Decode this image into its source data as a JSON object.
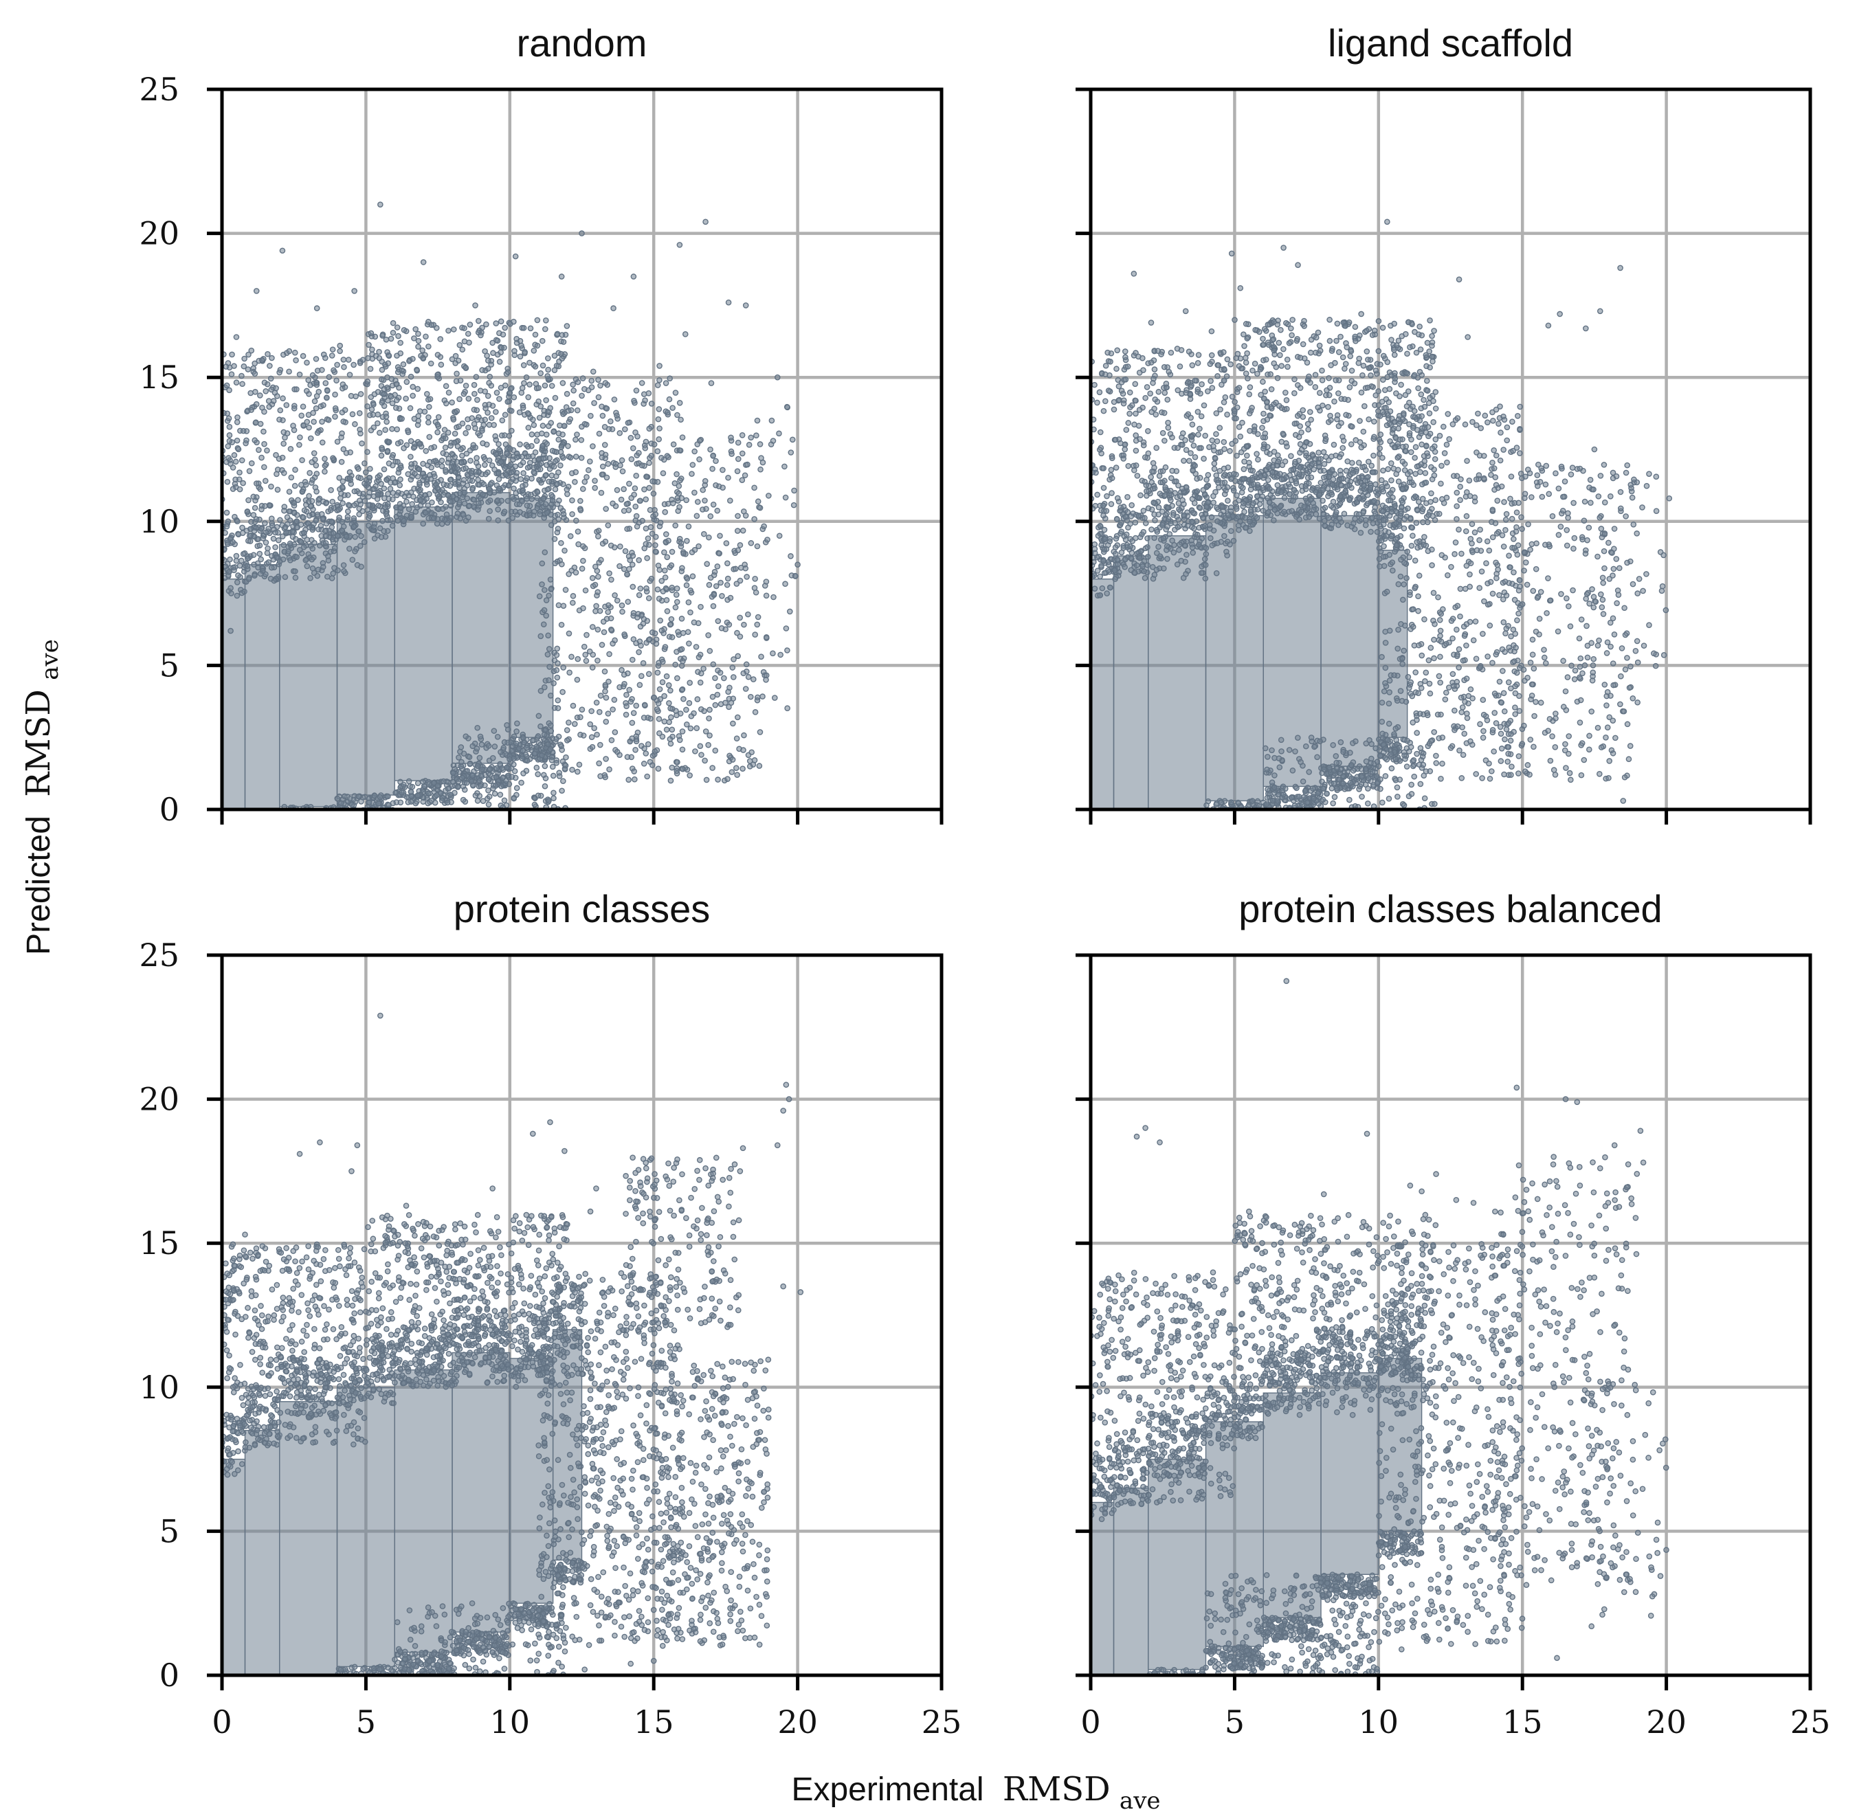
{
  "figure": {
    "xlabel": "Experimental",
    "ylabel": "Predicted",
    "label_math": "RMSD",
    "label_sub": "ave"
  },
  "chart_data": [
    {
      "type": "scatter",
      "title": "random",
      "xlim": [
        0,
        25
      ],
      "ylim": [
        0,
        25
      ],
      "xticks": [
        0,
        5,
        10,
        15,
        20,
        25
      ],
      "yticks": [
        0,
        5,
        10,
        15,
        20,
        25
      ],
      "grid": true,
      "color": "#728394",
      "x": [
        5.5,
        16.8,
        12.5,
        2.1,
        10.2,
        15.9,
        14.3,
        9.4,
        17.6,
        3.3,
        7.0,
        11.8,
        18.2,
        19.3,
        0.5,
        1.2,
        4.6,
        8.8,
        13.6,
        16.1,
        18.6,
        20.0,
        15.2,
        6.2,
        12.9,
        17.0,
        14.0,
        19.1,
        16.6,
        10.4,
        2.7,
        4.1,
        3.6,
        8.3,
        15.6,
        13.1,
        11.2,
        17.9,
        0.3,
        18.9,
        17.3,
        12.2,
        14.9
      ],
      "y": [
        21.0,
        20.4,
        20.0,
        19.4,
        19.2,
        19.6,
        18.5,
        16.2,
        17.6,
        17.4,
        19.0,
        18.5,
        17.5,
        15.0,
        16.4,
        18.0,
        18.0,
        17.5,
        17.4,
        16.5,
        13.5,
        8.5,
        15.4,
        16.2,
        15.2,
        14.8,
        13.2,
        13.5,
        12.8,
        16.1,
        15.1,
        16.1,
        14.8,
        12.5,
        3.2,
        1.6,
        2.6,
        1.2,
        6.2,
        4.5,
        9.5,
        3.6,
        9.8
      ],
      "density": {
        "bands": [
          {
            "x": [
              0,
              0.8
            ],
            "y": [
              0,
              8.0
            ]
          },
          {
            "x": [
              0.8,
              2.0
            ],
            "y": [
              0,
              8.5
            ]
          },
          {
            "x": [
              2.0,
              4.0
            ],
            "y": [
              0.1,
              9.2
            ]
          },
          {
            "x": [
              4.0,
              6.0
            ],
            "y": [
              0.5,
              10.0
            ]
          },
          {
            "x": [
              6.0,
              8.0
            ],
            "y": [
              1.0,
              10.5
            ]
          },
          {
            "x": [
              8.0,
              10.0
            ],
            "y": [
              1.6,
              11.0
            ]
          },
          {
            "x": [
              10.0,
              11.5
            ],
            "y": [
              2.5,
              10.8
            ]
          }
        ],
        "sparse": [
          {
            "x": [
              0,
              5
            ],
            "y": [
              8,
              16
            ],
            "n": 420
          },
          {
            "x": [
              5,
              12
            ],
            "y": [
              10,
              17
            ],
            "n": 650
          },
          {
            "x": [
              11,
              16
            ],
            "y": [
              1,
              15
            ],
            "n": 520
          },
          {
            "x": [
              14,
              19
            ],
            "y": [
              1,
              13
            ],
            "n": 320
          },
          {
            "x": [
              8,
              12
            ],
            "y": [
              0,
              3
            ],
            "n": 160
          },
          {
            "x": [
              16,
              20
            ],
            "y": [
              3,
              14
            ],
            "n": 70
          }
        ]
      }
    },
    {
      "type": "scatter",
      "title": "ligand scaffold",
      "xlim": [
        0,
        25
      ],
      "ylim": [
        0,
        25
      ],
      "xticks": [
        0,
        5,
        10,
        15,
        20,
        25
      ],
      "yticks": [
        0,
        5,
        10,
        15,
        20,
        25
      ],
      "grid": true,
      "color": "#728394",
      "x": [
        10.3,
        1.5,
        4.9,
        6.7,
        7.2,
        5.2,
        8.3,
        12.8,
        16.3,
        17.2,
        17.7,
        18.4,
        19.0,
        20.1,
        17.5,
        14.6,
        4.2,
        3.3,
        2.1,
        11.7,
        13.1,
        15.9,
        18.5,
        9.4,
        1.2,
        15.2,
        16.5,
        17.4,
        19.4
      ],
      "y": [
        20.4,
        18.6,
        19.3,
        19.5,
        18.9,
        18.1,
        17.0,
        18.4,
        17.2,
        16.7,
        17.3,
        18.8,
        7.5,
        10.8,
        12.5,
        1.2,
        16.6,
        17.3,
        16.9,
        16.2,
        16.4,
        16.8,
        0.3,
        17.2,
        15.9,
        9.9,
        4.1,
        3.4,
        6.4
      ],
      "density": {
        "bands": [
          {
            "x": [
              0,
              0.8
            ],
            "y": [
              0,
              8.0
            ]
          },
          {
            "x": [
              0.8,
              2.0
            ],
            "y": [
              0,
              8.8
            ]
          },
          {
            "x": [
              2.0,
              4.0
            ],
            "y": [
              0,
              9.5
            ]
          },
          {
            "x": [
              4.0,
              6.0
            ],
            "y": [
              0.3,
              10.2
            ]
          },
          {
            "x": [
              6.0,
              8.0
            ],
            "y": [
              0.8,
              10.8
            ]
          },
          {
            "x": [
              8.0,
              10.0
            ],
            "y": [
              1.5,
              10.2
            ]
          },
          {
            "x": [
              10.0,
              11.0
            ],
            "y": [
              2.5,
              9.0
            ]
          }
        ],
        "sparse": [
          {
            "x": [
              0,
              5
            ],
            "y": [
              8,
              16
            ],
            "n": 480
          },
          {
            "x": [
              5,
              12
            ],
            "y": [
              10,
              17
            ],
            "n": 700
          },
          {
            "x": [
              10,
              15
            ],
            "y": [
              1,
              14
            ],
            "n": 520
          },
          {
            "x": [
              14,
              19
            ],
            "y": [
              1,
              12
            ],
            "n": 300
          },
          {
            "x": [
              6,
              12
            ],
            "y": [
              0,
              2.5
            ],
            "n": 150
          },
          {
            "x": [
              17,
              20
            ],
            "y": [
              4,
              12
            ],
            "n": 50
          }
        ]
      }
    },
    {
      "type": "scatter",
      "title": "protein classes",
      "xlim": [
        0,
        25
      ],
      "ylim": [
        0,
        25
      ],
      "xticks": [
        0,
        5,
        10,
        15,
        20,
        25
      ],
      "yticks": [
        0,
        5,
        10,
        15,
        20,
        25
      ],
      "grid": true,
      "color": "#728394",
      "x": [
        5.5,
        19.6,
        19.7,
        19.5,
        20.1,
        18.1,
        16.8,
        11.4,
        10.8,
        11.9,
        3.4,
        2.7,
        4.5,
        6.4,
        4.7,
        0.8,
        13.0,
        12.8,
        19.3,
        19.5,
        16.9,
        18.0,
        17.4,
        7.1,
        9.4,
        14.2,
        15.0,
        12.6
      ],
      "y": [
        22.9,
        20.5,
        20.0,
        19.6,
        13.3,
        18.3,
        17.6,
        19.2,
        18.8,
        18.2,
        18.5,
        18.1,
        17.5,
        16.3,
        18.4,
        15.3,
        16.9,
        16.1,
        18.4,
        13.5,
        17.0,
        17.5,
        17.2,
        15.7,
        16.9,
        0.4,
        0.5,
        0.2
      ],
      "density": {
        "bands": [
          {
            "x": [
              0,
              0.8
            ],
            "y": [
              0,
              7.5
            ]
          },
          {
            "x": [
              0.8,
              2.0
            ],
            "y": [
              0,
              8.5
            ]
          },
          {
            "x": [
              2.0,
              4.0
            ],
            "y": [
              0,
              9.5
            ]
          },
          {
            "x": [
              4.0,
              6.0
            ],
            "y": [
              0.3,
              10.0
            ]
          },
          {
            "x": [
              6.0,
              8.0
            ],
            "y": [
              0.8,
              10.6
            ]
          },
          {
            "x": [
              8.0,
              10.0
            ],
            "y": [
              1.5,
              11.2
            ]
          },
          {
            "x": [
              10.0,
              11.5
            ],
            "y": [
              2.5,
              11.0
            ]
          },
          {
            "x": [
              11.5,
              12.5
            ],
            "y": [
              4.0,
              12.0
            ]
          }
        ],
        "sparse": [
          {
            "x": [
              0,
              5
            ],
            "y": [
              8,
              15
            ],
            "n": 420
          },
          {
            "x": [
              5,
              12
            ],
            "y": [
              10,
              16
            ],
            "n": 560
          },
          {
            "x": [
              11,
              16
            ],
            "y": [
              1,
              14
            ],
            "n": 640
          },
          {
            "x": [
              14,
              18
            ],
            "y": [
              12,
              18
            ],
            "n": 180
          },
          {
            "x": [
              15,
              19
            ],
            "y": [
              1,
              11
            ],
            "n": 360
          },
          {
            "x": [
              6,
              12
            ],
            "y": [
              0,
              2.5
            ],
            "n": 160
          }
        ]
      }
    },
    {
      "type": "scatter",
      "title": "protein classes balanced",
      "xlim": [
        0,
        25
      ],
      "ylim": [
        0,
        25
      ],
      "xticks": [
        0,
        5,
        10,
        15,
        20,
        25
      ],
      "yticks": [
        0,
        5,
        10,
        15,
        20,
        25
      ],
      "grid": true,
      "color": "#728394",
      "x": [
        6.8,
        14.8,
        16.5,
        16.9,
        19.1,
        19.2,
        18.2,
        17.7,
        1.6,
        1.9,
        2.4,
        9.6,
        8.1,
        11.1,
        11.5,
        12.0,
        12.7,
        13.3,
        5.5,
        6.1,
        0.3,
        19.7,
        16.2,
        17.4,
        18.6,
        10.8
      ],
      "y": [
        24.1,
        20.4,
        20.0,
        19.9,
        18.9,
        17.8,
        18.4,
        17.6,
        18.7,
        19.0,
        18.5,
        18.8,
        16.7,
        17.0,
        16.8,
        17.4,
        16.5,
        16.4,
        16.1,
        15.9,
        12.1,
        5.3,
        0.6,
        1.7,
        3.5,
        0.9
      ],
      "density": {
        "bands": [
          {
            "x": [
              0,
              0.8
            ],
            "y": [
              0,
              6.0
            ]
          },
          {
            "x": [
              0.8,
              2.0
            ],
            "y": [
              0,
              6.5
            ]
          },
          {
            "x": [
              2.0,
              4.0
            ],
            "y": [
              0.2,
              7.5
            ]
          },
          {
            "x": [
              4.0,
              6.0
            ],
            "y": [
              1.0,
              8.8
            ]
          },
          {
            "x": [
              6.0,
              8.0
            ],
            "y": [
              2.0,
              9.8
            ]
          },
          {
            "x": [
              8.0,
              10.0
            ],
            "y": [
              3.5,
              10.5
            ]
          },
          {
            "x": [
              10.0,
              11.5
            ],
            "y": [
              5.0,
              11.0
            ]
          }
        ],
        "sparse": [
          {
            "x": [
              0,
              5
            ],
            "y": [
              6,
              14
            ],
            "n": 380
          },
          {
            "x": [
              5,
              12
            ],
            "y": [
              9,
              16
            ],
            "n": 460
          },
          {
            "x": [
              10,
              15
            ],
            "y": [
              1,
              15
            ],
            "n": 480
          },
          {
            "x": [
              14,
              19
            ],
            "y": [
              3,
              18
            ],
            "n": 320
          },
          {
            "x": [
              4,
              10
            ],
            "y": [
              0,
              3.5
            ],
            "n": 260
          },
          {
            "x": [
              17,
              20
            ],
            "y": [
              2,
              10
            ],
            "n": 60
          }
        ]
      }
    }
  ]
}
